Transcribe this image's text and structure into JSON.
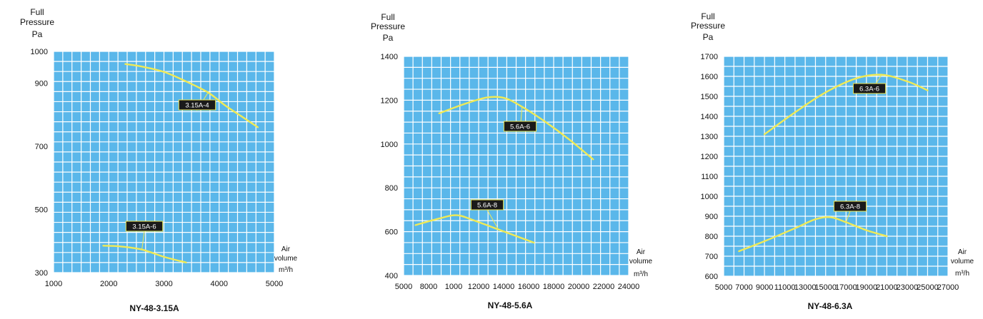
{
  "colors": {
    "plot_bg": "#5ab7ea",
    "grid": "#ffffff",
    "curve": "#f0ea55",
    "tag_bg": "#1a1a1a",
    "tag_border": "#f0ea55",
    "text": "#111111"
  },
  "chart_data": [
    {
      "type": "line",
      "caption": "NY-48-3.15A",
      "y_title": [
        "Full",
        "Pressure",
        "Pa"
      ],
      "x_title": [
        "Air",
        "volume",
        "m³/h"
      ],
      "xlim": [
        1000,
        5000
      ],
      "ylim": [
        300,
        1000
      ],
      "x_ticks": [
        "1000",
        "2000",
        "3000",
        "4000",
        "5000"
      ],
      "y_ticks": [
        "300",
        "500",
        "700",
        "900",
        "1000"
      ],
      "grid": true,
      "series": [
        {
          "name": "3.15A-4",
          "x": [
            2300,
            2600,
            3000,
            3400,
            3800,
            4100,
            4400,
            4700
          ],
          "y": [
            960,
            952,
            935,
            905,
            870,
            830,
            795,
            760
          ]
        },
        {
          "name": "3.15A-6",
          "x": [
            1900,
            2200,
            2600,
            3000,
            3400
          ],
          "y": [
            385,
            383,
            373,
            350,
            332
          ]
        }
      ]
    },
    {
      "type": "line",
      "caption": "NY-48-5.6A",
      "y_title": [
        "Full",
        "Pressure",
        "Pa"
      ],
      "x_title": [
        "Air",
        "volume",
        "m³/h"
      ],
      "xlim": [
        5000,
        24000
      ],
      "ylim": [
        400,
        1400
      ],
      "x_ticks": [
        "5000",
        "8000",
        "1000",
        "12000",
        "14000",
        "16000",
        "18000",
        "20000",
        "22000",
        "24000"
      ],
      "y_ticks": [
        "400",
        "600",
        "800",
        "1000",
        "1200",
        "1400"
      ],
      "grid": true,
      "series": [
        {
          "name": "5.6A-6",
          "x": [
            8000,
            10000,
            12000,
            13500,
            15000,
            17000,
            19000,
            21000
          ],
          "y": [
            1140,
            1180,
            1212,
            1210,
            1170,
            1100,
            1020,
            930
          ]
        },
        {
          "name": "5.6A-8",
          "x": [
            6000,
            8000,
            9500,
            11000,
            13000,
            16000
          ],
          "y": [
            630,
            660,
            675,
            650,
            610,
            550
          ]
        }
      ]
    },
    {
      "type": "line",
      "caption": "NY-48-6.3A",
      "y_title": [
        "Full",
        "Pressure",
        "Pa"
      ],
      "x_title": [
        "Air",
        "volume",
        "m³/h"
      ],
      "xlim": [
        5000,
        27000
      ],
      "ylim": [
        600,
        1700
      ],
      "x_ticks": [
        "5000",
        "7000",
        "9000",
        "11000",
        "13000",
        "15000",
        "17000",
        "19000",
        "21000",
        "23000",
        "25000",
        "27000"
      ],
      "y_ticks": [
        "600",
        "700",
        "800",
        "900",
        "1000",
        "1100",
        "1200",
        "1300",
        "1400",
        "1500",
        "1600",
        "1700"
      ],
      "grid": true,
      "series": [
        {
          "name": "6.3A-6",
          "x": [
            9000,
            12000,
            15000,
            18000,
            20500,
            23000,
            25000
          ],
          "y": [
            1310,
            1420,
            1520,
            1590,
            1608,
            1575,
            1530
          ]
        },
        {
          "name": "6.3A-8",
          "x": [
            6500,
            9000,
            12000,
            14000,
            15500,
            17000,
            19000,
            21000
          ],
          "y": [
            725,
            775,
            840,
            885,
            895,
            870,
            830,
            800
          ]
        }
      ]
    }
  ]
}
